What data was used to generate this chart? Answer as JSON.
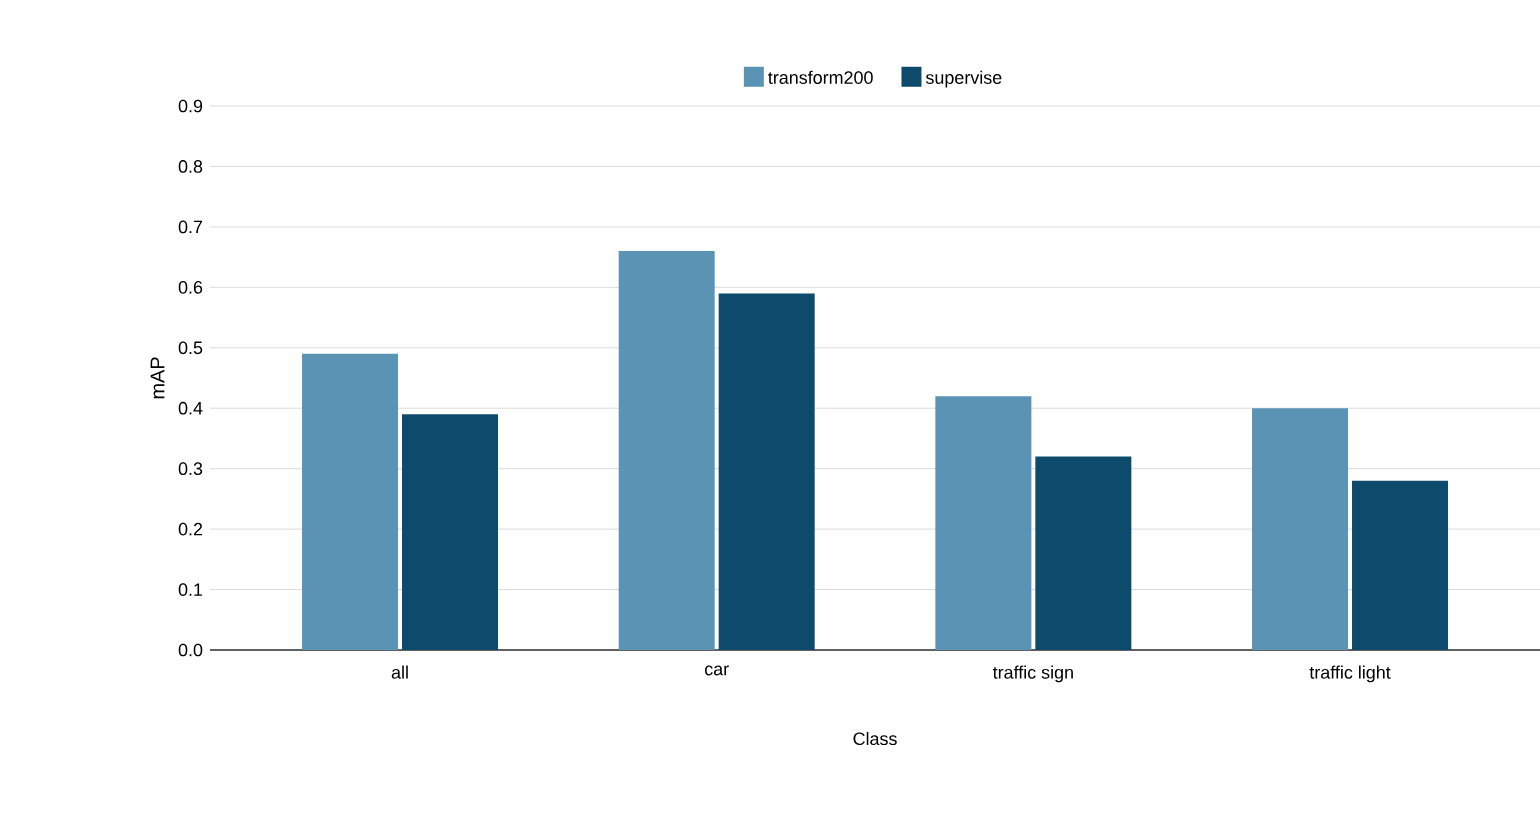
{
  "chart_data": {
    "type": "bar",
    "xlabel": "Class",
    "ylabel": "mAP",
    "categories": [
      "all",
      "car",
      "traffic sign",
      "traffic light"
    ],
    "series": [
      {
        "name": "transform200",
        "color": "#5b93b4",
        "values": [
          0.49,
          0.66,
          0.42,
          0.4
        ]
      },
      {
        "name": "supervise",
        "color": "#0d4a6b",
        "values": [
          0.39,
          0.59,
          0.32,
          0.28
        ]
      }
    ],
    "ylim": [
      0,
      0.9
    ],
    "yticks": [
      {
        "value": 0,
        "label": "0.0"
      },
      {
        "value": 0.1,
        "label": "0.1"
      },
      {
        "value": 0.2,
        "label": "0.2"
      },
      {
        "value": 0.3,
        "label": "0.3"
      },
      {
        "value": 0.4,
        "label": "0.4"
      },
      {
        "value": 0.5,
        "label": "0.5"
      },
      {
        "value": 0.6,
        "label": "0.6"
      },
      {
        "value": 0.7,
        "label": "0.7"
      },
      {
        "value": 0.8,
        "label": "0.8"
      },
      {
        "value": 0.9,
        "label": "0.9"
      }
    ],
    "grid": "y",
    "legend": "top"
  }
}
